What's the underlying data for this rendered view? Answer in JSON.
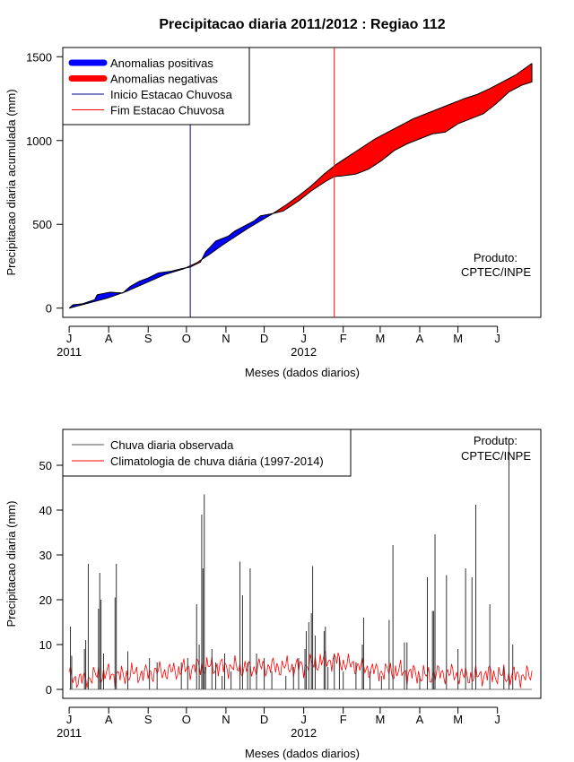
{
  "title": "Precipitacao diaria 2011/2012 : Regiao 112",
  "chart_data": [
    {
      "type": "area",
      "name": "accumulated",
      "ylabel": "Precipitacao diaria acumulada (mm)",
      "xlabel": "Meses (dados diarios)",
      "ylim": [
        -55,
        1555
      ],
      "xlim": [
        -5,
        370
      ],
      "yticks": [
        0,
        500,
        1000,
        1500
      ],
      "month_ticks": [
        {
          "label": "J",
          "day": 0
        },
        {
          "label": "A",
          "day": 31
        },
        {
          "label": "S",
          "day": 62
        },
        {
          "label": "O",
          "day": 92
        },
        {
          "label": "N",
          "day": 123
        },
        {
          "label": "D",
          "day": 153
        },
        {
          "label": "J",
          "day": 184
        },
        {
          "label": "F",
          "day": 215
        },
        {
          "label": "M",
          "day": 244
        },
        {
          "label": "A",
          "day": 275
        },
        {
          "label": "M",
          "day": 305
        },
        {
          "label": "J",
          "day": 336
        }
      ],
      "year_labels": [
        {
          "label": "2011",
          "day": 0
        },
        {
          "label": "2012",
          "day": 184
        }
      ],
      "season_start_day": 95,
      "season_end_day": 208,
      "observed_points": [
        [
          0,
          0
        ],
        [
          3,
          20
        ],
        [
          10,
          25
        ],
        [
          20,
          50
        ],
        [
          22,
          80
        ],
        [
          32,
          95
        ],
        [
          42,
          90
        ],
        [
          48,
          130
        ],
        [
          55,
          160
        ],
        [
          62,
          180
        ],
        [
          70,
          210
        ],
        [
          80,
          220
        ],
        [
          88,
          235
        ],
        [
          95,
          245
        ],
        [
          103,
          275
        ],
        [
          107,
          335
        ],
        [
          115,
          400
        ],
        [
          125,
          430
        ],
        [
          130,
          460
        ],
        [
          140,
          500
        ],
        [
          145,
          520
        ],
        [
          150,
          550
        ],
        [
          160,
          565
        ],
        [
          168,
          580
        ],
        [
          180,
          640
        ],
        [
          190,
          700
        ],
        [
          198,
          740
        ],
        [
          202,
          760
        ],
        [
          208,
          785
        ],
        [
          215,
          790
        ],
        [
          225,
          800
        ],
        [
          235,
          830
        ],
        [
          245,
          880
        ],
        [
          255,
          940
        ],
        [
          265,
          980
        ],
        [
          275,
          1010
        ],
        [
          285,
          1040
        ],
        [
          295,
          1050
        ],
        [
          305,
          1100
        ],
        [
          315,
          1130
        ],
        [
          325,
          1160
        ],
        [
          335,
          1220
        ],
        [
          345,
          1290
        ],
        [
          355,
          1330
        ],
        [
          363,
          1350
        ],
        [
          363,
          1460
        ]
      ],
      "climatology_points": [
        [
          0,
          0
        ],
        [
          15,
          30
        ],
        [
          30,
          60
        ],
        [
          45,
          100
        ],
        [
          60,
          150
        ],
        [
          75,
          200
        ],
        [
          90,
          235
        ],
        [
          100,
          270
        ],
        [
          110,
          320
        ],
        [
          120,
          375
        ],
        [
          130,
          425
        ],
        [
          140,
          475
        ],
        [
          150,
          520
        ],
        [
          160,
          565
        ],
        [
          170,
          615
        ],
        [
          180,
          670
        ],
        [
          190,
          730
        ],
        [
          200,
          800
        ],
        [
          210,
          860
        ],
        [
          220,
          910
        ],
        [
          230,
          960
        ],
        [
          240,
          1010
        ],
        [
          250,
          1050
        ],
        [
          260,
          1090
        ],
        [
          270,
          1130
        ],
        [
          280,
          1160
        ],
        [
          290,
          1190
        ],
        [
          300,
          1220
        ],
        [
          310,
          1250
        ],
        [
          320,
          1275
        ],
        [
          330,
          1310
        ],
        [
          340,
          1350
        ],
        [
          350,
          1390
        ],
        [
          363,
          1460
        ]
      ],
      "legend": [
        {
          "label": "Anomalias positivas",
          "color": "#0000ff"
        },
        {
          "label": "Anomalias negativas",
          "color": "#ff0000"
        },
        {
          "label": "Inicio Estacao Chuvosa",
          "color": "#00008b"
        },
        {
          "label": "Fim Estacao Chuvosa",
          "color": "#ff0000"
        }
      ],
      "credit": [
        "Produto:",
        "CPTEC/INPE"
      ]
    },
    {
      "type": "bar",
      "name": "daily",
      "ylabel": "Precipitacao diaria (mm)",
      "xlabel": "Meses (dados diarios)",
      "ylim": [
        -2,
        58
      ],
      "xlim": [
        -5,
        370
      ],
      "yticks": [
        0,
        10,
        20,
        30,
        40,
        50
      ],
      "month_ticks": [
        {
          "label": "J",
          "day": 0
        },
        {
          "label": "A",
          "day": 31
        },
        {
          "label": "S",
          "day": 62
        },
        {
          "label": "O",
          "day": 92
        },
        {
          "label": "N",
          "day": 123
        },
        {
          "label": "D",
          "day": 153
        },
        {
          "label": "J",
          "day": 184
        },
        {
          "label": "F",
          "day": 215
        },
        {
          "label": "M",
          "day": 244
        },
        {
          "label": "A",
          "day": 275
        },
        {
          "label": "M",
          "day": 305
        },
        {
          "label": "J",
          "day": 336
        }
      ],
      "year_labels": [
        {
          "label": "2011",
          "day": 0
        },
        {
          "label": "2012",
          "day": 184
        }
      ],
      "observed_bars": [
        [
          1,
          14
        ],
        [
          2,
          7.5
        ],
        [
          12,
          9
        ],
        [
          13,
          11
        ],
        [
          15,
          28
        ],
        [
          23,
          18
        ],
        [
          24,
          26
        ],
        [
          25,
          20
        ],
        [
          27,
          8
        ],
        [
          36,
          20.5
        ],
        [
          37,
          28
        ],
        [
          46,
          8.5
        ],
        [
          63,
          7
        ],
        [
          69,
          6
        ],
        [
          88,
          6
        ],
        [
          93,
          7
        ],
        [
          100,
          19
        ],
        [
          102,
          10
        ],
        [
          104,
          39
        ],
        [
          105,
          27
        ],
        [
          106,
          43.5
        ],
        [
          107,
          5
        ],
        [
          112,
          9
        ],
        [
          115,
          6
        ],
        [
          120,
          3
        ],
        [
          122,
          8
        ],
        [
          127,
          4
        ],
        [
          134,
          28.5
        ],
        [
          136,
          21
        ],
        [
          140,
          6
        ],
        [
          142,
          27
        ],
        [
          147,
          8
        ],
        [
          153,
          7
        ],
        [
          159,
          4
        ],
        [
          170,
          3
        ],
        [
          176,
          5
        ],
        [
          180,
          7
        ],
        [
          185,
          9
        ],
        [
          186,
          13
        ],
        [
          188,
          15
        ],
        [
          190,
          17
        ],
        [
          191,
          27.5
        ],
        [
          193,
          12
        ],
        [
          200,
          13
        ],
        [
          201,
          14
        ],
        [
          203,
          5
        ],
        [
          208,
          8
        ],
        [
          212,
          7
        ],
        [
          215,
          4
        ],
        [
          225,
          6
        ],
        [
          230,
          10
        ],
        [
          231,
          16
        ],
        [
          236,
          4
        ],
        [
          245,
          3
        ],
        [
          251,
          15.5
        ],
        [
          254,
          32.2
        ],
        [
          263,
          10.5
        ],
        [
          265,
          10.5
        ],
        [
          275,
          3
        ],
        [
          281,
          25
        ],
        [
          285,
          17.5
        ],
        [
          286,
          17.5
        ],
        [
          287,
          34.6
        ],
        [
          296,
          25.5
        ],
        [
          305,
          9
        ],
        [
          311,
          27
        ],
        [
          316,
          25
        ],
        [
          319,
          41.2
        ],
        [
          330,
          19
        ],
        [
          341,
          5
        ],
        [
          345,
          56
        ],
        [
          348,
          10
        ]
      ],
      "climatology_line": [
        [
          0,
          3
        ],
        [
          10,
          2
        ],
        [
          20,
          3
        ],
        [
          30,
          3.5
        ],
        [
          40,
          3
        ],
        [
          50,
          3.5
        ],
        [
          60,
          3.5
        ],
        [
          70,
          4
        ],
        [
          80,
          4
        ],
        [
          90,
          4.5
        ],
        [
          100,
          5
        ],
        [
          110,
          5
        ],
        [
          120,
          5
        ],
        [
          130,
          5
        ],
        [
          140,
          4.5
        ],
        [
          150,
          5
        ],
        [
          160,
          5
        ],
        [
          170,
          5
        ],
        [
          180,
          5
        ],
        [
          190,
          5.5
        ],
        [
          200,
          6.5
        ],
        [
          210,
          6.5
        ],
        [
          220,
          5.5
        ],
        [
          230,
          5
        ],
        [
          240,
          4
        ],
        [
          250,
          4
        ],
        [
          260,
          4
        ],
        [
          270,
          3.5
        ],
        [
          280,
          3
        ],
        [
          290,
          3.5
        ],
        [
          300,
          3.5
        ],
        [
          310,
          3
        ],
        [
          320,
          3
        ],
        [
          330,
          3.5
        ],
        [
          340,
          3
        ],
        [
          350,
          3
        ],
        [
          363,
          3
        ]
      ],
      "legend": [
        {
          "label": "Chuva diaria observada",
          "color": "#555555"
        },
        {
          "label": "Climatologia de chuva diária (1997-2014)",
          "color": "#ff0000"
        }
      ],
      "credit": [
        "Produto:",
        "CPTEC/INPE"
      ]
    }
  ]
}
